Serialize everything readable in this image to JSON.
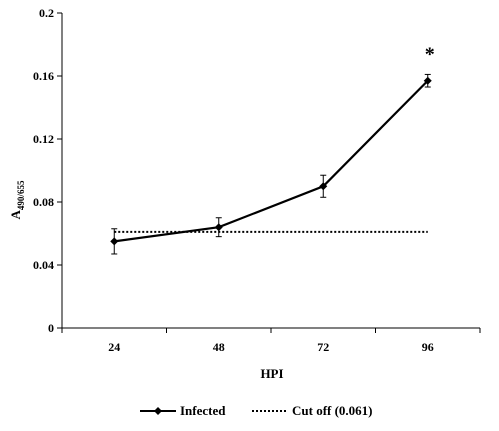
{
  "chart_data": {
    "type": "line",
    "title": "",
    "xlabel": "HPI",
    "ylabel": {
      "main": "A",
      "sub": "490/655"
    },
    "categories": [
      "24",
      "48",
      "72",
      "96"
    ],
    "ylim": [
      0,
      0.2
    ],
    "yticks": [
      "0",
      "0.04",
      "0.08",
      "0.12",
      "0.16",
      "0.2"
    ],
    "grid": false,
    "legend": "bottom",
    "series": [
      {
        "name": "Infected",
        "values": [
          0.055,
          0.064,
          0.09,
          0.157
        ],
        "errors": [
          0.008,
          0.006,
          0.007,
          0.004
        ],
        "style": "solid",
        "marker": "diamond",
        "color": "#000000"
      },
      {
        "name": "Cut off (0.061)",
        "values": [
          0.061,
          0.061,
          0.061,
          0.061
        ],
        "style": "dotted",
        "marker": "none",
        "color": "#000000"
      }
    ],
    "annotations": [
      {
        "category": "96",
        "text": "*"
      }
    ]
  }
}
